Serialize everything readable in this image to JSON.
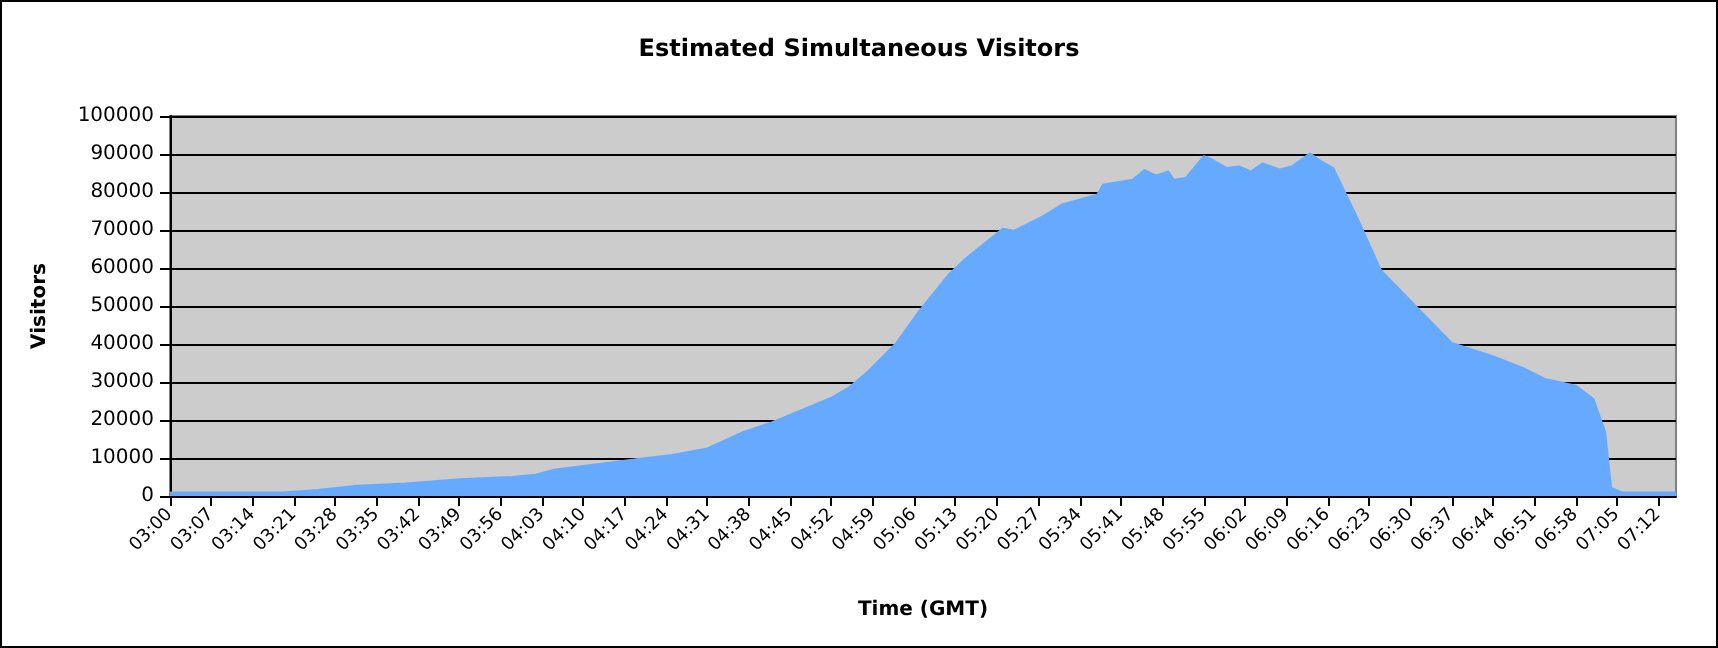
{
  "chart_data": {
    "type": "area",
    "title": "Estimated Simultaneous Visitors",
    "xlabel": "Time (GMT)",
    "ylabel": "Visitors",
    "x": [
      3,
      3.317,
      3.417,
      3.517,
      3.667,
      3.817,
      3.967,
      4.033,
      4.083,
      4.217,
      4.333,
      4.417,
      4.517,
      4.617,
      4.7,
      4.767,
      4.867,
      4.917,
      4.967,
      5.05,
      5.117,
      5.2,
      5.25,
      5.35,
      5.383,
      5.467,
      5.517,
      5.617,
      5.633,
      5.717,
      5.75,
      5.783,
      5.817,
      5.833,
      5.867,
      5.917,
      5.933,
      5.983,
      6.017,
      6.05,
      6.083,
      6.133,
      6.167,
      6.217,
      6.25,
      6.283,
      6.35,
      6.417,
      6.517,
      6.617,
      6.733,
      6.817,
      6.883,
      6.967,
      7.017,
      7.05,
      7.067,
      7.1,
      7.25
    ],
    "series": [
      {
        "color": "#66aaff",
        "values": [
          900,
          900,
          1600,
          2600,
          3300,
          4400,
          5000,
          5600,
          6900,
          8500,
          9900,
          10800,
          12500,
          16800,
          19400,
          22000,
          25900,
          28600,
          32500,
          40300,
          49000,
          58500,
          62800,
          70300,
          69800,
          73800,
          76700,
          79300,
          81900,
          83200,
          85800,
          84300,
          85400,
          83200,
          83700,
          89400,
          88900,
          86300,
          86700,
          85400,
          87500,
          85900,
          86800,
          90100,
          88000,
          86300,
          73300,
          59400,
          49800,
          40300,
          36800,
          33700,
          30700,
          29000,
          25500,
          16800,
          2100,
          900,
          900
        ]
      }
    ],
    "xlim": [
      3,
      7.25
    ],
    "xticks": [
      {
        "value": 3,
        "label": "03:00"
      },
      {
        "value": 3.1167,
        "label": "03:07"
      },
      {
        "value": 3.2333,
        "label": "03:14"
      },
      {
        "value": 3.35,
        "label": "03:21"
      },
      {
        "value": 3.4667,
        "label": "03:28"
      },
      {
        "value": 3.5833,
        "label": "03:35"
      },
      {
        "value": 3.7,
        "label": "03:42"
      },
      {
        "value": 3.8167,
        "label": "03:49"
      },
      {
        "value": 3.9333,
        "label": "03:56"
      },
      {
        "value": 4.05,
        "label": "04:03"
      },
      {
        "value": 4.1667,
        "label": "04:10"
      },
      {
        "value": 4.2833,
        "label": "04:17"
      },
      {
        "value": 4.4,
        "label": "04:24"
      },
      {
        "value": 4.5167,
        "label": "04:31"
      },
      {
        "value": 4.6333,
        "label": "04:38"
      },
      {
        "value": 4.75,
        "label": "04:45"
      },
      {
        "value": 4.8667,
        "label": "04:52"
      },
      {
        "value": 4.9833,
        "label": "04:59"
      },
      {
        "value": 5.1,
        "label": "05:06"
      },
      {
        "value": 5.2167,
        "label": "05:13"
      },
      {
        "value": 5.3333,
        "label": "05:20"
      },
      {
        "value": 5.45,
        "label": "05:27"
      },
      {
        "value": 5.5667,
        "label": "05:34"
      },
      {
        "value": 5.6833,
        "label": "05:41"
      },
      {
        "value": 5.8,
        "label": "05:48"
      },
      {
        "value": 5.9167,
        "label": "05:55"
      },
      {
        "value": 6.0333,
        "label": "06:02"
      },
      {
        "value": 6.15,
        "label": "06:09"
      },
      {
        "value": 6.2667,
        "label": "06:16"
      },
      {
        "value": 6.3833,
        "label": "06:23"
      },
      {
        "value": 6.5,
        "label": "06:30"
      },
      {
        "value": 6.6167,
        "label": "06:37"
      },
      {
        "value": 6.7333,
        "label": "06:44"
      },
      {
        "value": 6.85,
        "label": "06:51"
      },
      {
        "value": 6.9667,
        "label": "06:58"
      },
      {
        "value": 7.0833,
        "label": "07:05"
      },
      {
        "value": 7.2,
        "label": "07:12"
      }
    ],
    "ylim": [
      0,
      100000
    ],
    "yticks": [
      0,
      10000,
      20000,
      30000,
      40000,
      50000,
      60000,
      70000,
      80000,
      90000,
      100000
    ],
    "grid": "y",
    "marker": "none"
  }
}
